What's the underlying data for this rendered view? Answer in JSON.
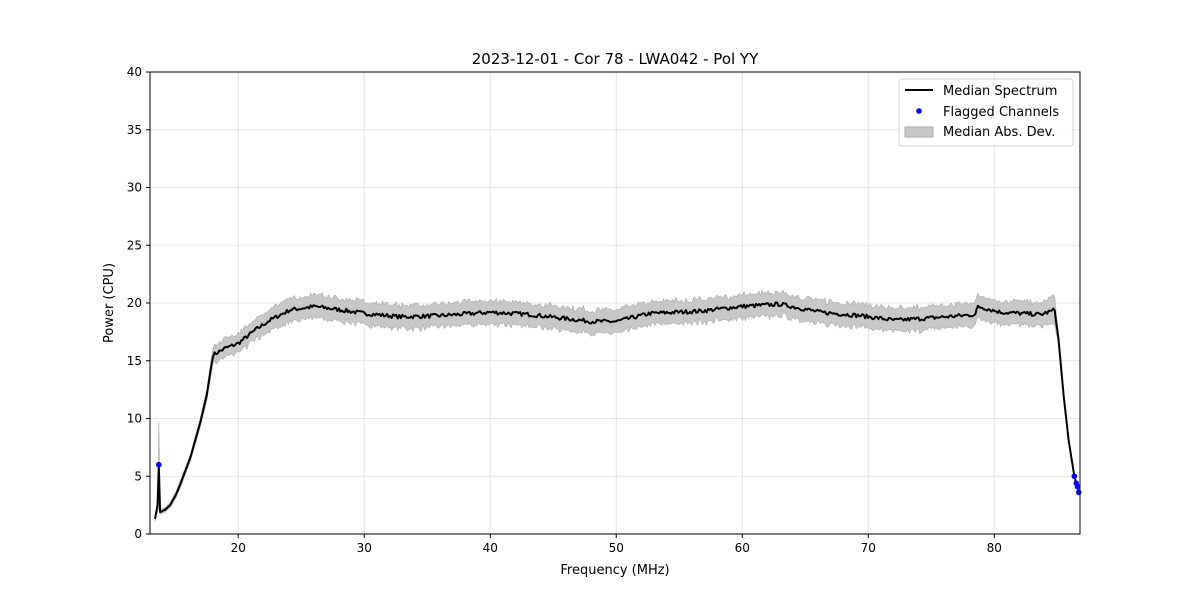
{
  "chart_data": {
    "type": "line",
    "title": "2023-12-01 - Cor 78 - LWA042 - Pol YY",
    "xlabel": "Frequency (MHz)",
    "ylabel": "Power (CPU)",
    "xlim": [
      13.0,
      86.8
    ],
    "ylim": [
      0,
      40
    ],
    "xticks": [
      20,
      30,
      40,
      50,
      60,
      70,
      80
    ],
    "yticks": [
      0,
      5,
      10,
      15,
      20,
      25,
      30,
      35,
      40
    ],
    "grid": true,
    "legend_position": "top-right",
    "legend": [
      "Median Spectrum",
      "Flagged Channels",
      "Median Abs. Dev."
    ],
    "colors": {
      "median": "#000000",
      "flagged": "#0000ff",
      "mad": "#c8c8c8",
      "mad_edge": "#aaaaaa"
    },
    "series": [
      {
        "name": "Median Spectrum",
        "x": [
          13.4,
          13.6,
          13.7,
          13.8,
          14.2,
          14.6,
          15.1,
          15.4,
          16.2,
          17.0,
          17.5,
          18.0,
          19.0,
          20.0,
          21.4,
          22.5,
          24.1,
          26.1,
          28.1,
          30.0,
          32.9,
          36.0,
          40.0,
          43.2,
          45.6,
          48.0,
          50.0,
          52.7,
          56.7,
          59.9,
          63.0,
          66.2,
          69.4,
          72.1,
          74.9,
          78.5,
          78.7,
          80.5,
          83.7,
          84.8,
          85.1,
          85.5,
          85.9,
          86.35,
          86.5,
          86.6,
          86.7
        ],
        "y": [
          1.3,
          2.5,
          6.0,
          1.9,
          2.1,
          2.5,
          3.5,
          4.3,
          6.6,
          9.7,
          12.0,
          15.5,
          16.1,
          16.5,
          17.7,
          18.5,
          19.4,
          19.7,
          19.4,
          19.1,
          18.8,
          18.9,
          19.2,
          19.0,
          18.7,
          18.4,
          18.4,
          19.1,
          19.3,
          19.7,
          19.9,
          19.2,
          18.9,
          18.5,
          18.7,
          19.0,
          19.7,
          19.2,
          19.0,
          19.4,
          16.8,
          12.0,
          8.1,
          5.0,
          4.4,
          4.1,
          3.6
        ],
        "mad": [
          0.2,
          0.5,
          3.8,
          0.2,
          0.2,
          0.2,
          0.3,
          0.3,
          0.3,
          0.4,
          0.5,
          0.7,
          0.8,
          0.8,
          0.9,
          1.0,
          1.0,
          1.0,
          1.0,
          1.0,
          1.0,
          1.0,
          1.0,
          1.0,
          1.0,
          1.0,
          1.0,
          1.0,
          1.0,
          1.0,
          1.0,
          1.0,
          1.0,
          1.0,
          1.0,
          1.0,
          1.0,
          1.0,
          1.0,
          1.2,
          0.3,
          0.1,
          0.1,
          0.1,
          0.1,
          0.1,
          0.1
        ]
      }
    ],
    "flagged": {
      "x": [
        13.7,
        86.35,
        86.5,
        86.6,
        86.7
      ],
      "y": [
        6.0,
        5.0,
        4.4,
        4.1,
        3.6
      ]
    }
  }
}
